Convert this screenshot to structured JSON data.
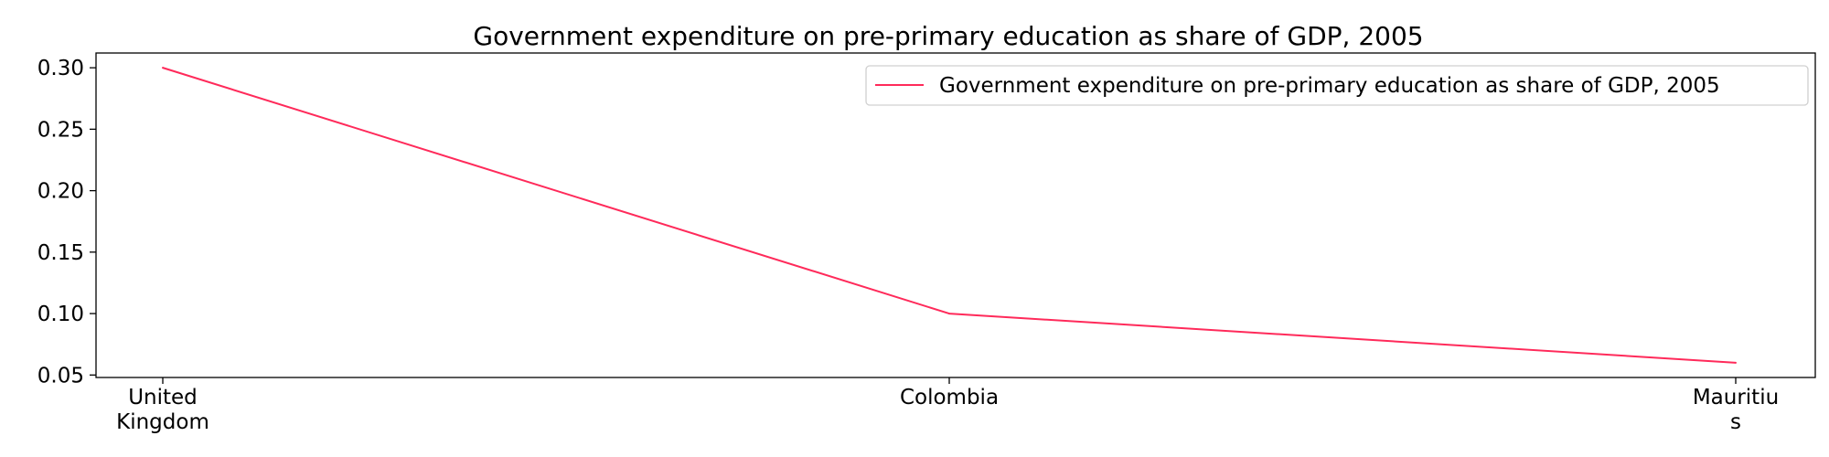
{
  "chart_data": {
    "type": "line",
    "title": "Government expenditure on pre-primary education as share of GDP, 2005",
    "xlabel": "",
    "ylabel": "",
    "categories": [
      "United Kingdom",
      "Colombia",
      "Mauritius"
    ],
    "category_tick_lines": [
      [
        "United",
        "Kingdom"
      ],
      [
        "Colombia"
      ],
      [
        "Mauritiu",
        "s"
      ]
    ],
    "series": [
      {
        "name": "Government expenditure on pre-primary education as share of GDP, 2005",
        "values": [
          0.3,
          0.1,
          0.06
        ],
        "color": "#ff2a5a"
      }
    ],
    "yticks": [
      "0.05",
      "0.10",
      "0.15",
      "0.20",
      "0.25",
      "0.30"
    ],
    "ylim": [
      0.048,
      0.312
    ],
    "grid": false,
    "legend": "top-right"
  }
}
